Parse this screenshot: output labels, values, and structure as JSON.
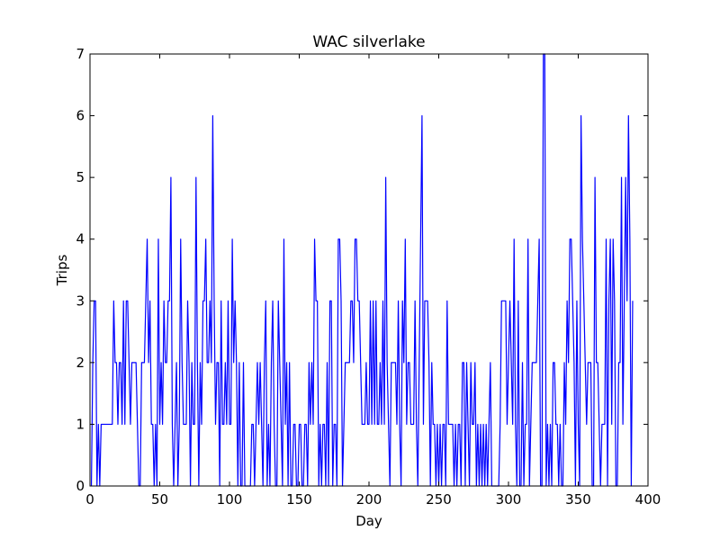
{
  "chart_data": {
    "type": "line",
    "title": "WAC silverlake",
    "xlabel": "Day",
    "ylabel": "Trips",
    "xlim": [
      0,
      400
    ],
    "ylim": [
      0,
      7
    ],
    "xticks": [
      0,
      50,
      100,
      150,
      200,
      250,
      300,
      350,
      400
    ],
    "yticks": [
      0,
      1,
      2,
      3,
      4,
      5,
      6,
      7
    ],
    "grid": false,
    "line_color": "#0000ff",
    "series": [
      {
        "values": [
          0,
          2,
          3,
          3,
          0,
          1,
          0,
          1,
          1,
          1,
          1,
          1,
          1,
          1,
          1,
          1,
          3,
          2,
          2,
          1,
          2,
          2,
          1,
          3,
          1,
          3,
          3,
          2,
          1,
          2,
          2,
          2,
          2,
          1,
          0,
          0,
          2,
          2,
          2,
          3,
          4,
          2,
          3,
          1,
          1,
          0,
          1,
          0,
          4,
          1,
          2,
          1,
          3,
          2,
          2,
          3,
          3,
          5,
          1,
          0,
          1,
          2,
          0,
          1,
          4,
          2,
          1,
          1,
          1,
          3,
          2,
          0,
          2,
          1,
          1,
          5,
          2,
          0,
          2,
          1,
          3,
          3,
          4,
          2,
          2,
          3,
          2,
          6,
          3,
          1,
          2,
          2,
          0,
          3,
          1,
          1,
          2,
          1,
          3,
          1,
          1,
          4,
          2,
          3,
          2,
          0,
          2,
          0,
          0,
          2,
          0,
          0,
          0,
          0,
          0,
          1,
          1,
          0,
          1,
          2,
          1,
          2,
          1,
          0,
          2,
          3,
          0,
          1,
          0,
          2,
          3,
          1,
          0,
          0,
          3,
          2,
          1,
          0,
          4,
          1,
          2,
          0,
          2,
          0,
          0,
          1,
          1,
          0,
          0,
          1,
          1,
          0,
          0,
          1,
          1,
          0,
          2,
          1,
          2,
          1,
          4,
          3,
          3,
          0,
          1,
          0,
          1,
          1,
          0,
          2,
          0,
          3,
          3,
          0,
          1,
          1,
          0,
          4,
          4,
          3,
          0,
          1,
          2,
          2,
          2,
          2,
          3,
          3,
          2,
          4,
          4,
          3,
          3,
          2,
          1,
          1,
          1,
          2,
          1,
          1,
          3,
          1,
          3,
          1,
          3,
          1,
          1,
          2,
          1,
          3,
          1,
          5,
          2,
          1,
          0,
          2,
          2,
          2,
          2,
          1,
          3,
          1,
          0,
          3,
          2,
          4,
          1,
          2,
          2,
          1,
          1,
          1,
          3,
          1,
          0,
          2,
          4,
          6,
          1,
          3,
          3,
          3,
          2,
          0,
          2,
          1,
          1,
          0,
          1,
          0,
          1,
          0,
          1,
          1,
          0,
          3,
          1,
          1,
          1,
          1,
          0,
          1,
          0,
          1,
          1,
          0,
          2,
          2,
          0,
          2,
          1,
          0,
          2,
          1,
          1,
          2,
          0,
          1,
          0,
          1,
          0,
          1,
          0,
          1,
          0,
          1,
          2,
          0,
          0,
          0,
          0,
          0,
          0,
          1,
          3,
          3,
          3,
          3,
          1,
          2,
          3,
          2,
          1,
          4,
          1,
          0,
          3,
          0,
          0,
          2,
          0,
          1,
          1,
          4,
          0,
          1,
          2,
          2,
          2,
          2,
          3,
          4,
          0,
          0,
          7,
          7,
          0,
          1,
          0,
          1,
          0,
          2,
          2,
          1,
          1,
          0,
          1,
          0,
          0,
          2,
          1,
          3,
          2,
          4,
          4,
          3,
          2,
          0,
          3,
          1,
          0,
          6,
          4,
          3,
          2,
          1,
          2,
          2,
          2,
          0,
          0,
          5,
          2,
          2,
          1,
          0,
          1,
          1,
          1,
          4,
          0,
          3,
          4,
          1,
          4,
          3,
          0,
          0,
          2,
          2,
          5,
          1,
          3,
          5,
          3,
          6,
          4,
          0,
          3
        ]
      }
    ]
  }
}
